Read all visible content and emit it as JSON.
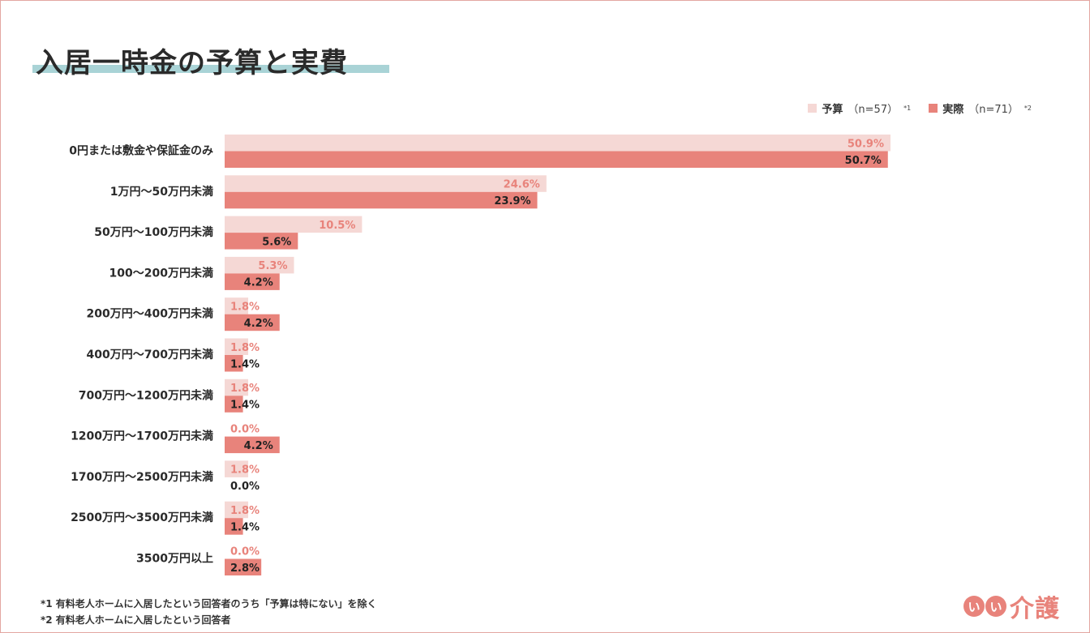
{
  "title": "入居一時金の予算と実費",
  "legend": [
    {
      "label": "予算",
      "n": "（n=57）",
      "note": "*1",
      "color": "#f5d8d5"
    },
    {
      "label": "実際",
      "n": "（n=71）",
      "note": "*2",
      "color": "#e8837b"
    }
  ],
  "footnotes": [
    "*1 有料老人ホームに入居したという回答者のうち「予算は特にない」を除く",
    "*2 有料老人ホームに入居したという回答者"
  ],
  "logo": {
    "circle1": "い",
    "circle2": "い",
    "text": "介護"
  },
  "colors": {
    "budget_bar": "#f5d8d5",
    "actual_bar": "#e8837b",
    "budget_label": "#e8837b",
    "actual_label": "#222222"
  },
  "chart_data": {
    "type": "bar",
    "orientation": "horizontal",
    "categories": [
      "0円または敷金や保証金のみ",
      "1万円〜50万円未満",
      "50万円〜100万円未満",
      "100〜200万円未満",
      "200万円〜400万円未満",
      "400万円〜700万円未満",
      "700万円〜1200万円未満",
      "1200万円〜1700万円未満",
      "1700万円〜2500万円未満",
      "2500万円〜3500万円未満",
      "3500万円以上"
    ],
    "series": [
      {
        "name": "予算",
        "values": [
          50.9,
          24.6,
          10.5,
          5.3,
          1.8,
          1.8,
          1.8,
          0.0,
          1.8,
          1.8,
          0.0
        ],
        "labels": [
          "50.9%",
          "24.6%",
          "10.5%",
          "5.3%",
          "1.8%",
          "1.8%",
          "1.8%",
          "0.0%",
          "1.8%",
          "1.8%",
          "0.0%"
        ]
      },
      {
        "name": "実際",
        "values": [
          50.7,
          23.9,
          5.6,
          4.2,
          4.2,
          1.4,
          1.4,
          4.2,
          0.0,
          1.4,
          2.8
        ],
        "labels": [
          "50.7%",
          "23.9%",
          "5.6%",
          "4.2%",
          "4.2%",
          "1.4%",
          "1.4%",
          "4.2%",
          "0.0%",
          "1.4%",
          "2.8%"
        ]
      }
    ],
    "xlim": [
      0,
      60
    ],
    "grid": false,
    "legend_position": "top-right"
  }
}
